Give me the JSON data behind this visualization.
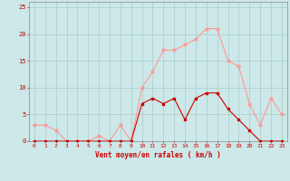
{
  "hours": [
    0,
    1,
    2,
    3,
    4,
    5,
    6,
    7,
    8,
    9,
    10,
    11,
    12,
    13,
    14,
    15,
    16,
    17,
    18,
    19,
    20,
    21,
    22,
    23
  ],
  "wind_mean": [
    0,
    0,
    0,
    0,
    0,
    0,
    0,
    0,
    0,
    0,
    7,
    8,
    7,
    8,
    4,
    8,
    9,
    9,
    6,
    4,
    2,
    0,
    0,
    0
  ],
  "wind_gust": [
    3,
    3,
    2,
    0,
    0,
    0,
    1,
    0,
    3,
    0,
    10,
    13,
    17,
    17,
    18,
    19,
    21,
    21,
    15,
    14,
    7,
    3,
    8,
    5
  ],
  "wind_mean_color": "#cc0000",
  "wind_gust_color": "#ff9999",
  "bg_color": "#cce8e8",
  "grid_color": "#aacccc",
  "axis_color": "#cc0000",
  "xlabel": "Vent moyen/en rafales ( km/h )",
  "ylim": [
    0,
    26
  ],
  "xlim": [
    -0.5,
    23.5
  ],
  "yticks": [
    0,
    5,
    10,
    15,
    20,
    25
  ],
  "xticks": [
    0,
    1,
    2,
    3,
    4,
    5,
    6,
    7,
    8,
    9,
    10,
    11,
    12,
    13,
    14,
    15,
    16,
    17,
    18,
    19,
    20,
    21,
    22,
    23
  ]
}
